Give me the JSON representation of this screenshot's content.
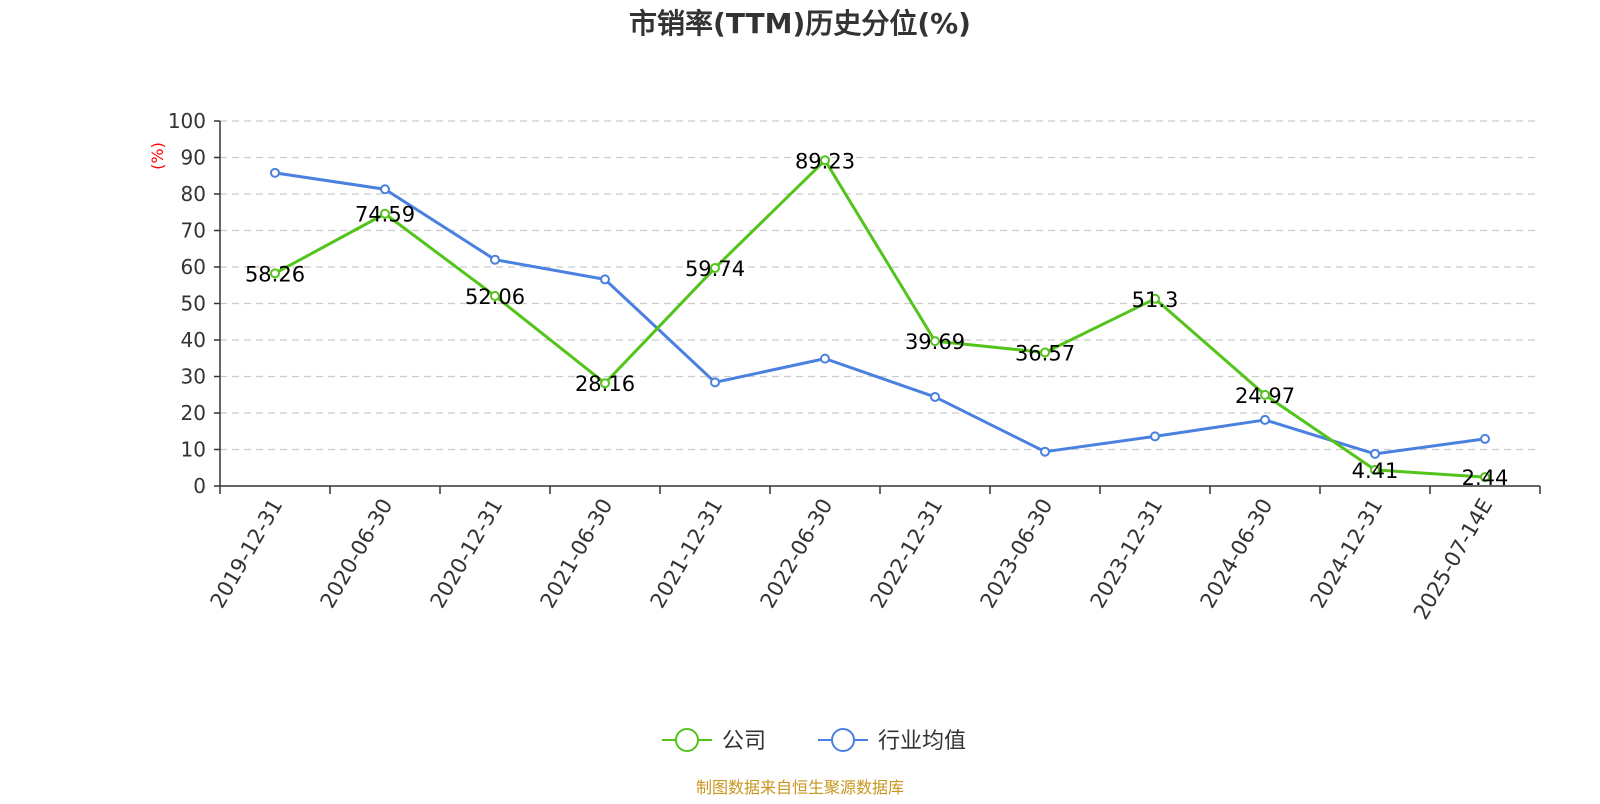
{
  "chart_data": {
    "type": "line",
    "title": "市销率(TTM)历史分位(%)",
    "ylabel": "(%)",
    "xlabel": "",
    "ylim": [
      0,
      100
    ],
    "yticks": [
      0,
      10,
      20,
      30,
      40,
      50,
      60,
      70,
      80,
      90,
      100
    ],
    "categories": [
      "2019-12-31",
      "2020-06-30",
      "2020-12-31",
      "2021-06-30",
      "2021-12-31",
      "2022-06-30",
      "2022-12-31",
      "2023-06-30",
      "2023-12-31",
      "2024-06-30",
      "2024-12-31",
      "2025-07-14E"
    ],
    "grid": true,
    "legend_position": "bottom-center",
    "series": [
      {
        "name": "公司",
        "color": "#52c41a",
        "values": [
          58.26,
          74.59,
          52.06,
          28.16,
          59.74,
          89.23,
          39.69,
          36.57,
          51.3,
          24.97,
          4.41,
          2.44
        ],
        "labels": [
          "58.26",
          "74.59",
          "52.06",
          "28.16",
          "59.74",
          "89.23",
          "39.69",
          "36.57",
          "51.3",
          "24.97",
          "4.41",
          "2.44"
        ]
      },
      {
        "name": "行业均值",
        "color": "#4a80e0",
        "values": [
          85.8,
          81.3,
          62.0,
          56.6,
          28.4,
          34.9,
          24.4,
          9.4,
          13.6,
          18.1,
          8.8,
          12.9
        ]
      }
    ],
    "source_note": "制图数据来自恒生聚源数据库"
  }
}
